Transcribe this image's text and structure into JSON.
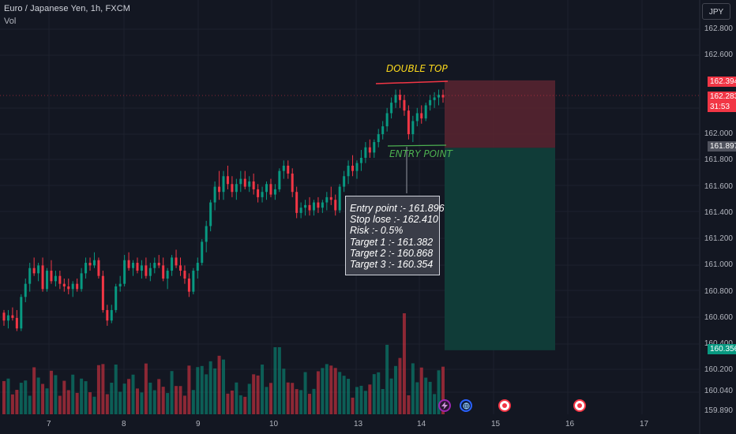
{
  "header": {
    "symbol_line": "Euro / Japanese Yen, 1h, FXCM",
    "volume_label": "Vol",
    "currency_button": "JPY"
  },
  "y_axis": {
    "ticks": [
      "162.800",
      "162.600",
      "162.000",
      "161.800",
      "161.600",
      "161.400",
      "161.200",
      "161.000",
      "160.800",
      "160.600",
      "160.400",
      "160.200",
      "160.040",
      "159.890"
    ],
    "tick_values": [
      162.8,
      162.6,
      162.0,
      161.8,
      161.6,
      161.4,
      161.2,
      161.0,
      160.8,
      160.6,
      160.4,
      160.2,
      160.04,
      159.89
    ]
  },
  "x_axis": {
    "ticks": [
      "7",
      "8",
      "9",
      "10",
      "13",
      "14",
      "15",
      "16",
      "17"
    ]
  },
  "price_tags": {
    "stop": {
      "value": "162.394",
      "color": "#f23645"
    },
    "current": {
      "value": "162.283",
      "countdown": "31:53",
      "color": "#f23645"
    },
    "entry": {
      "value": "161.897",
      "color": "#50535e"
    },
    "target": {
      "value": "160.356",
      "color": "#089981"
    }
  },
  "annotations": {
    "double_top": "DOUBLE TOP",
    "entry_point": "ENTRY POINT",
    "info_lines": [
      "Entry point :- 161.896",
      "Stop lose :- 162.410",
      "Risk :- 0.5%",
      "Target 1 :- 161.382",
      "Target 2 :- 160.868",
      "Target 3 :- 160.354"
    ]
  },
  "colors": {
    "background": "#131722",
    "up_candle": "#089981",
    "down_candle": "#f23645",
    "grid": "#1e222d",
    "stop_zone": "#5a2530",
    "target_zone": "#103e3a",
    "double_top_line": "#f23645",
    "entry_line": "#4caf50"
  },
  "events": [
    {
      "icon": "lightning-icon",
      "color": "#9c27b0"
    },
    {
      "icon": "globe-icon",
      "color": "#2962ff"
    },
    {
      "icon": "flag-icon",
      "color": "#f23645"
    },
    {
      "icon": "flag-icon",
      "color": "#f23645"
    }
  ],
  "chart_data": {
    "type": "candlestick",
    "y_range": [
      159.89,
      162.8
    ],
    "trade": {
      "entry": 161.896,
      "stop": 162.41,
      "target_low": 160.354
    },
    "candles": [
      [
        160.64,
        160.66,
        160.54,
        160.58
      ],
      [
        160.58,
        160.66,
        160.52,
        160.62
      ],
      [
        160.62,
        160.68,
        160.58,
        160.6
      ],
      [
        160.6,
        160.66,
        160.5,
        160.52
      ],
      [
        160.52,
        160.78,
        160.5,
        160.76
      ],
      [
        160.76,
        160.9,
        160.72,
        160.86
      ],
      [
        160.86,
        161.02,
        160.8,
        160.98
      ],
      [
        160.98,
        161.06,
        160.92,
        160.94
      ],
      [
        160.94,
        161.02,
        160.88,
        161.0
      ],
      [
        161.0,
        161.06,
        160.8,
        160.82
      ],
      [
        160.82,
        160.98,
        160.8,
        160.96
      ],
      [
        160.96,
        161.04,
        160.86,
        160.88
      ],
      [
        160.88,
        160.96,
        160.84,
        160.92
      ],
      [
        160.92,
        160.96,
        160.82,
        160.86
      ],
      [
        160.86,
        160.9,
        160.8,
        160.84
      ],
      [
        160.84,
        160.9,
        160.78,
        160.82
      ],
      [
        160.82,
        160.88,
        160.76,
        160.86
      ],
      [
        160.86,
        160.9,
        160.8,
        160.82
      ],
      [
        160.82,
        160.98,
        160.8,
        160.94
      ],
      [
        160.94,
        161.06,
        160.9,
        161.02
      ],
      [
        161.02,
        161.06,
        160.96,
        161.0
      ],
      [
        161.0,
        161.1,
        160.98,
        161.04
      ],
      [
        161.04,
        161.06,
        160.9,
        160.92
      ],
      [
        160.92,
        160.96,
        160.64,
        160.66
      ],
      [
        160.66,
        160.7,
        160.54,
        160.58
      ],
      [
        160.58,
        160.7,
        160.56,
        160.66
      ],
      [
        160.66,
        160.86,
        160.64,
        160.84
      ],
      [
        160.84,
        160.92,
        160.8,
        160.86
      ],
      [
        160.86,
        161.08,
        160.84,
        161.04
      ],
      [
        161.04,
        161.1,
        160.96,
        160.98
      ],
      [
        160.98,
        161.04,
        160.92,
        161.02
      ],
      [
        161.02,
        161.06,
        160.94,
        160.96
      ],
      [
        160.96,
        161.04,
        160.9,
        161.0
      ],
      [
        161.0,
        161.06,
        160.9,
        160.92
      ],
      [
        160.92,
        161.02,
        160.88,
        160.98
      ],
      [
        160.98,
        161.06,
        160.94,
        161.02
      ],
      [
        161.02,
        161.08,
        160.98,
        161.0
      ],
      [
        161.0,
        161.06,
        160.88,
        160.9
      ],
      [
        160.9,
        160.98,
        160.82,
        160.96
      ],
      [
        160.96,
        161.08,
        160.92,
        161.06
      ],
      [
        161.06,
        161.12,
        160.98,
        161.0
      ],
      [
        161.0,
        161.06,
        160.92,
        160.96
      ],
      [
        160.96,
        161.0,
        160.86,
        160.9
      ],
      [
        160.9,
        160.94,
        160.76,
        160.8
      ],
      [
        160.8,
        160.98,
        160.78,
        160.96
      ],
      [
        160.96,
        161.06,
        160.9,
        161.02
      ],
      [
        161.02,
        161.2,
        161.0,
        161.18
      ],
      [
        161.18,
        161.34,
        161.1,
        161.3
      ],
      [
        161.3,
        161.5,
        161.26,
        161.48
      ],
      [
        161.48,
        161.64,
        161.42,
        161.6
      ],
      [
        161.6,
        161.72,
        161.5,
        161.56
      ],
      [
        161.56,
        161.72,
        161.5,
        161.68
      ],
      [
        161.68,
        161.76,
        161.58,
        161.62
      ],
      [
        161.62,
        161.68,
        161.52,
        161.56
      ],
      [
        161.56,
        161.66,
        161.5,
        161.62
      ],
      [
        161.62,
        161.72,
        161.56,
        161.66
      ],
      [
        161.66,
        161.72,
        161.58,
        161.6
      ],
      [
        161.6,
        161.68,
        161.56,
        161.64
      ],
      [
        161.64,
        161.7,
        161.54,
        161.58
      ],
      [
        161.58,
        161.62,
        161.48,
        161.52
      ],
      [
        161.52,
        161.6,
        161.48,
        161.56
      ],
      [
        161.56,
        161.64,
        161.5,
        161.62
      ],
      [
        161.62,
        161.66,
        161.52,
        161.54
      ],
      [
        161.54,
        161.62,
        161.5,
        161.58
      ],
      [
        161.58,
        161.74,
        161.56,
        161.72
      ],
      [
        161.72,
        161.8,
        161.66,
        161.76
      ],
      [
        161.76,
        161.8,
        161.66,
        161.7
      ],
      [
        161.7,
        161.74,
        161.52,
        161.56
      ],
      [
        161.56,
        161.6,
        161.36,
        161.4
      ],
      [
        161.4,
        161.48,
        161.36,
        161.44
      ],
      [
        161.44,
        161.5,
        161.38,
        161.46
      ],
      [
        161.46,
        161.52,
        161.38,
        161.42
      ],
      [
        161.42,
        161.5,
        161.38,
        161.48
      ],
      [
        161.48,
        161.52,
        161.4,
        161.44
      ],
      [
        161.44,
        161.5,
        161.4,
        161.48
      ],
      [
        161.48,
        161.56,
        161.42,
        161.52
      ],
      [
        161.52,
        161.6,
        161.46,
        161.5
      ],
      [
        161.5,
        161.54,
        161.38,
        161.42
      ],
      [
        161.42,
        161.62,
        161.4,
        161.6
      ],
      [
        161.6,
        161.72,
        161.56,
        161.68
      ],
      [
        161.68,
        161.8,
        161.62,
        161.76
      ],
      [
        161.76,
        161.84,
        161.68,
        161.72
      ],
      [
        161.72,
        161.8,
        161.66,
        161.78
      ],
      [
        161.78,
        161.88,
        161.72,
        161.82
      ],
      [
        161.82,
        161.94,
        161.78,
        161.9
      ],
      [
        161.9,
        161.96,
        161.82,
        161.86
      ],
      [
        161.86,
        161.96,
        161.82,
        161.94
      ],
      [
        161.94,
        162.04,
        161.9,
        162.0
      ],
      [
        162.0,
        162.1,
        161.96,
        162.06
      ],
      [
        162.06,
        162.2,
        162.02,
        162.16
      ],
      [
        162.16,
        162.28,
        162.12,
        162.24
      ],
      [
        162.24,
        162.34,
        162.2,
        162.3
      ],
      [
        162.3,
        162.34,
        162.2,
        162.26
      ],
      [
        162.26,
        162.3,
        162.14,
        162.18
      ],
      [
        162.18,
        162.22,
        161.96,
        162.0
      ],
      [
        162.0,
        162.14,
        161.94,
        162.1
      ],
      [
        162.1,
        162.2,
        162.06,
        162.16
      ],
      [
        162.16,
        162.22,
        162.08,
        162.12
      ],
      [
        162.12,
        162.24,
        162.1,
        162.22
      ],
      [
        162.22,
        162.3,
        162.18,
        162.26
      ],
      [
        162.26,
        162.32,
        162.2,
        162.28
      ],
      [
        162.28,
        162.34,
        162.22,
        162.3
      ],
      [
        162.3,
        162.34,
        162.24,
        162.28
      ]
    ],
    "volume_max": 120
  }
}
